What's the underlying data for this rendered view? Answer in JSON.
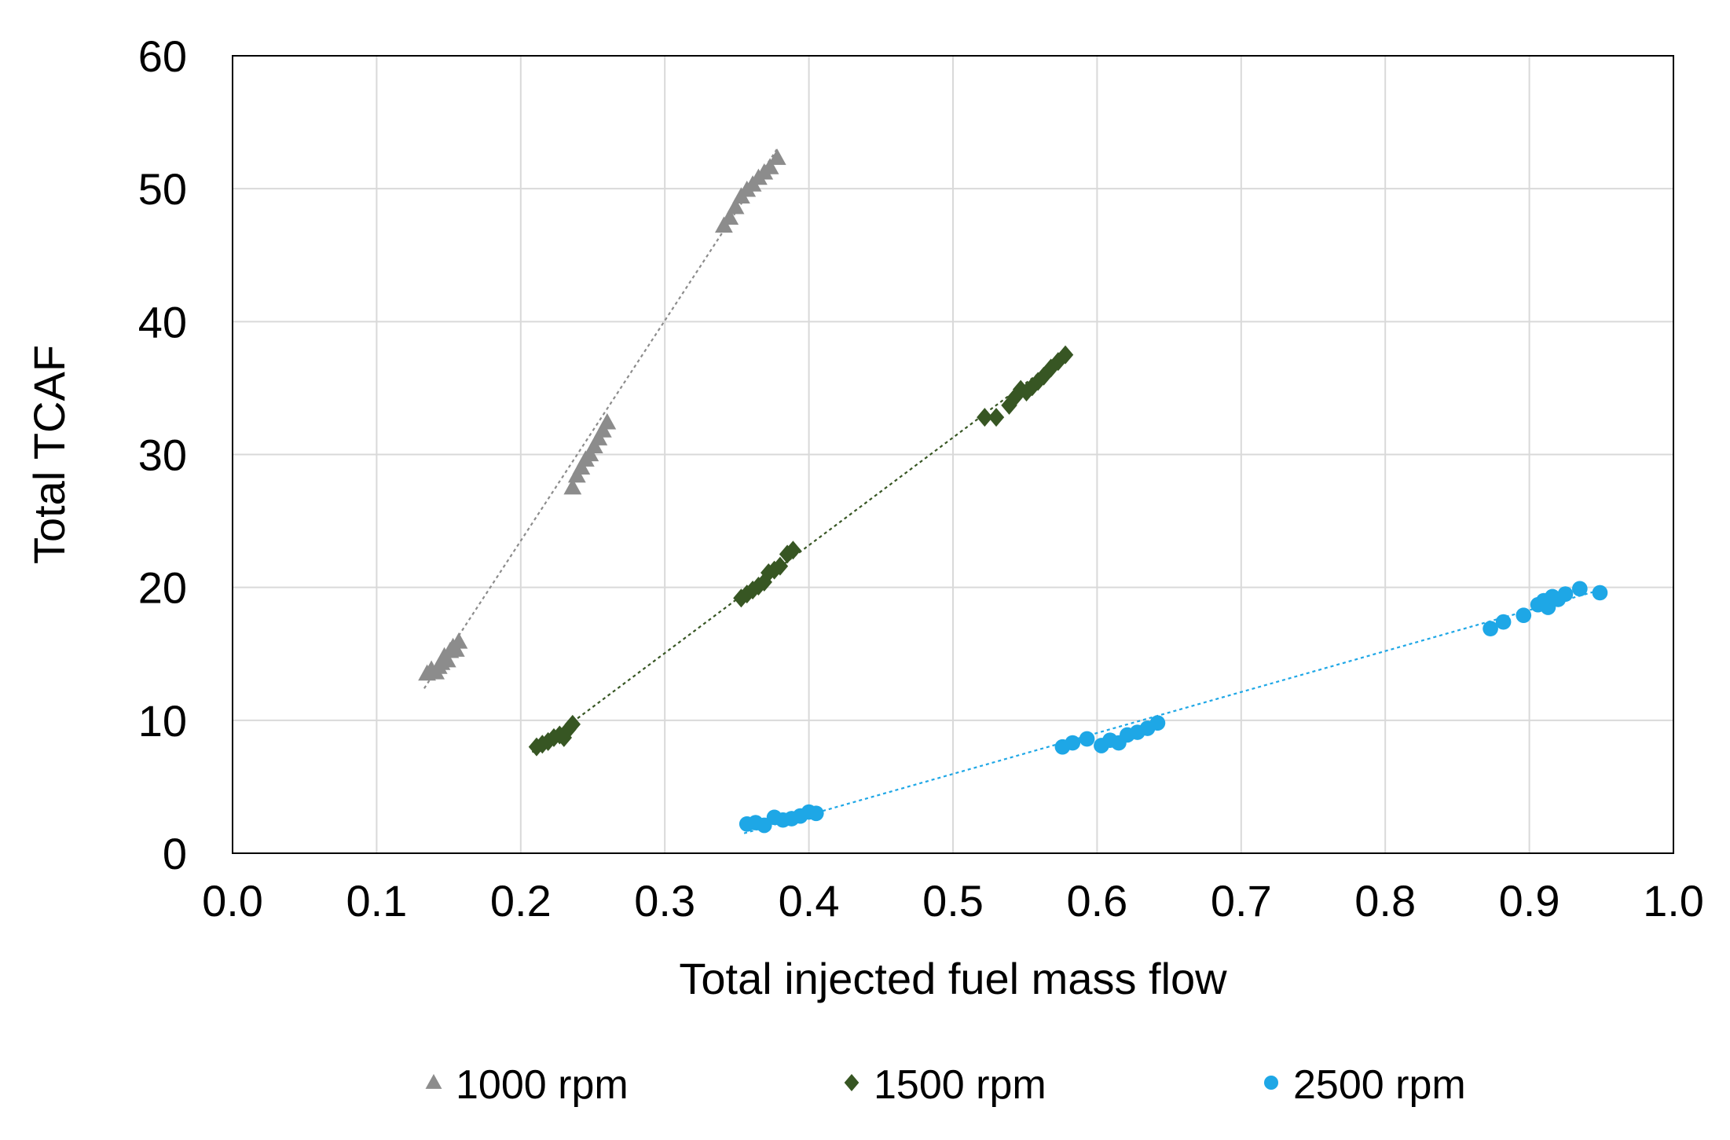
{
  "chart_data": {
    "type": "scatter",
    "title": "",
    "xlabel": "Total injected fuel mass flow",
    "ylabel": "Total TCAF",
    "xlim": [
      0.0,
      1.0
    ],
    "ylim": [
      0,
      60
    ],
    "x_ticks": [
      "0.0",
      "0.1",
      "0.2",
      "0.3",
      "0.4",
      "0.5",
      "0.6",
      "0.7",
      "0.8",
      "0.9",
      "1.0"
    ],
    "y_ticks": [
      "0",
      "10",
      "20",
      "30",
      "40",
      "50",
      "60"
    ],
    "grid": "vertical and horizontal, light gray",
    "legend_position": "bottom",
    "trendlines": "linear, dotted, one per series",
    "series": [
      {
        "name": "1000 rpm",
        "marker": "triangle",
        "color": "#8c8c8c",
        "points": [
          [
            0.135,
            13.5
          ],
          [
            0.138,
            13.8
          ],
          [
            0.141,
            13.6
          ],
          [
            0.143,
            14.0
          ],
          [
            0.145,
            14.3
          ],
          [
            0.147,
            14.8
          ],
          [
            0.149,
            14.5
          ],
          [
            0.151,
            15.2
          ],
          [
            0.153,
            15.5
          ],
          [
            0.155,
            15.3
          ],
          [
            0.157,
            15.9
          ],
          [
            0.236,
            27.5
          ],
          [
            0.239,
            28.4
          ],
          [
            0.242,
            29.0
          ],
          [
            0.245,
            29.6
          ],
          [
            0.248,
            30.0
          ],
          [
            0.251,
            30.6
          ],
          [
            0.254,
            31.2
          ],
          [
            0.257,
            31.8
          ],
          [
            0.26,
            32.4
          ],
          [
            0.341,
            47.2
          ],
          [
            0.345,
            47.8
          ],
          [
            0.349,
            48.6
          ],
          [
            0.353,
            49.4
          ],
          [
            0.357,
            49.9
          ],
          [
            0.361,
            50.3
          ],
          [
            0.365,
            50.8
          ],
          [
            0.369,
            51.2
          ],
          [
            0.373,
            51.6
          ],
          [
            0.378,
            52.3
          ]
        ],
        "trend": [
          [
            0.133,
            12.4
          ],
          [
            0.378,
            53.0
          ]
        ]
      },
      {
        "name": "1500 rpm",
        "marker": "diamond",
        "color": "#375623",
        "points": [
          [
            0.211,
            8.0
          ],
          [
            0.215,
            8.2
          ],
          [
            0.219,
            8.4
          ],
          [
            0.223,
            8.7
          ],
          [
            0.227,
            8.9
          ],
          [
            0.23,
            8.7
          ],
          [
            0.233,
            9.3
          ],
          [
            0.236,
            9.7
          ],
          [
            0.353,
            19.2
          ],
          [
            0.357,
            19.5
          ],
          [
            0.361,
            19.8
          ],
          [
            0.365,
            20.1
          ],
          [
            0.369,
            20.4
          ],
          [
            0.372,
            21.1
          ],
          [
            0.376,
            21.3
          ],
          [
            0.38,
            21.6
          ],
          [
            0.385,
            22.5
          ],
          [
            0.389,
            22.8
          ],
          [
            0.522,
            32.8
          ],
          [
            0.53,
            32.8
          ],
          [
            0.539,
            33.7
          ],
          [
            0.543,
            34.3
          ],
          [
            0.547,
            34.9
          ],
          [
            0.551,
            34.7
          ],
          [
            0.555,
            35.1
          ],
          [
            0.559,
            35.5
          ],
          [
            0.563,
            35.9
          ],
          [
            0.568,
            36.5
          ],
          [
            0.573,
            37.0
          ],
          [
            0.578,
            37.5
          ]
        ],
        "trend": [
          [
            0.208,
            7.6
          ],
          [
            0.578,
            37.6
          ]
        ]
      },
      {
        "name": "2500 rpm",
        "marker": "circle",
        "color": "#1ea7e6",
        "points": [
          [
            0.357,
            2.2
          ],
          [
            0.363,
            2.3
          ],
          [
            0.369,
            2.1
          ],
          [
            0.376,
            2.7
          ],
          [
            0.382,
            2.5
          ],
          [
            0.388,
            2.6
          ],
          [
            0.394,
            2.8
          ],
          [
            0.4,
            3.1
          ],
          [
            0.405,
            3.0
          ],
          [
            0.576,
            8.0
          ],
          [
            0.583,
            8.3
          ],
          [
            0.593,
            8.6
          ],
          [
            0.603,
            8.1
          ],
          [
            0.609,
            8.5
          ],
          [
            0.615,
            8.3
          ],
          [
            0.621,
            8.9
          ],
          [
            0.628,
            9.1
          ],
          [
            0.635,
            9.4
          ],
          [
            0.642,
            9.8
          ],
          [
            0.873,
            16.9
          ],
          [
            0.882,
            17.4
          ],
          [
            0.896,
            17.9
          ],
          [
            0.906,
            18.7
          ],
          [
            0.91,
            19.0
          ],
          [
            0.913,
            18.5
          ],
          [
            0.916,
            19.3
          ],
          [
            0.92,
            19.1
          ],
          [
            0.925,
            19.5
          ],
          [
            0.935,
            19.9
          ],
          [
            0.949,
            19.6
          ]
        ],
        "trend": [
          [
            0.355,
            1.5
          ],
          [
            0.949,
            19.8
          ]
        ]
      }
    ]
  }
}
